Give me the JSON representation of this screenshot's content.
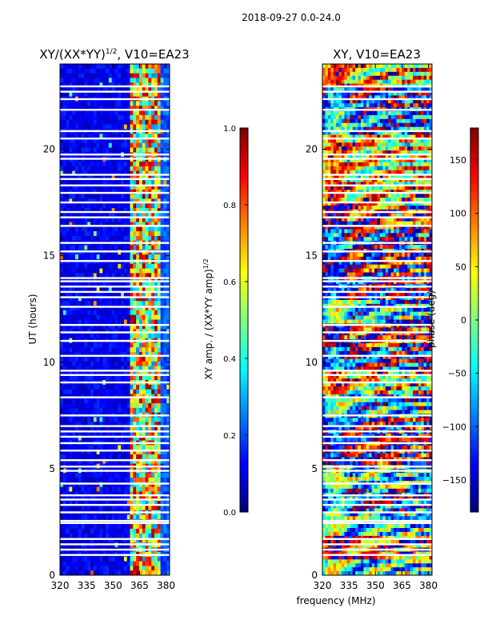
{
  "suptitle": "2018-09-27 0.0-24.0",
  "colors": {
    "jet": [
      "#00007f",
      "#0000ff",
      "#007fff",
      "#00ffff",
      "#7fff7f",
      "#ffff00",
      "#ff7f00",
      "#ff0000",
      "#7f0000"
    ],
    "flag_gap": "#ffffff"
  },
  "chart_data": [
    {
      "type": "heatmap",
      "panel": "amplitude",
      "title": "XY/(XX*YY)",
      "title_exponent": "1/2",
      "title_suffix": ", V10=EA23",
      "xlabel": "",
      "ylabel": "UT (hours)",
      "xlim": [
        320,
        382
      ],
      "ylim": [
        0,
        24
      ],
      "xticks": [
        "320",
        "335",
        "350",
        "365",
        "380"
      ],
      "xtick_values": [
        320,
        335,
        350,
        365,
        380
      ],
      "yticks": [
        "0",
        "5",
        "10",
        "15",
        "20"
      ],
      "ytick_values": [
        0,
        5,
        10,
        15,
        20
      ],
      "colorbar": {
        "label": "XY amp. / (XX*YY amp)",
        "label_exponent": "1/2",
        "vmin": 0.0,
        "vmax": 1.0,
        "ticks": [
          "0.0",
          "0.2",
          "0.4",
          "0.6",
          "0.8",
          "1.0"
        ],
        "tick_values": [
          0.0,
          0.2,
          0.4,
          0.6,
          0.8,
          1.0
        ]
      },
      "description_bands": [
        {
          "freq_range": [
            320,
            360
          ],
          "typical_value": 0.05
        },
        {
          "freq_range": [
            360,
            377
          ],
          "typical_value": 0.55
        },
        {
          "freq_range": [
            377,
            382
          ],
          "typical_value": 0.15
        }
      ]
    },
    {
      "type": "heatmap",
      "panel": "phase",
      "title": "XY, V10=EA23",
      "xlabel": "frequency (MHz)",
      "ylabel": "",
      "xlim": [
        320,
        382
      ],
      "ylim": [
        0,
        24
      ],
      "xticks": [
        "320",
        "335",
        "350",
        "365",
        "380"
      ],
      "xtick_values": [
        320,
        335,
        350,
        365,
        380
      ],
      "yticks": [
        "0",
        "5",
        "10",
        "15",
        "20"
      ],
      "ytick_values": [
        0,
        5,
        10,
        15,
        20
      ],
      "colorbar": {
        "label": "phase (deg)",
        "vmin": -180,
        "vmax": 180,
        "ticks": [
          "−150",
          "−100",
          "−50",
          "0",
          "50",
          "100",
          "150"
        ],
        "tick_values": [
          -150,
          -100,
          -50,
          0,
          50,
          100,
          150
        ]
      }
    }
  ],
  "flagged_hours": [
    0.95,
    1.2,
    1.45,
    1.7,
    2.45,
    2.55,
    2.95,
    3.3,
    3.55,
    3.75,
    4.3,
    4.9,
    5.1,
    5.4,
    5.85,
    6.2,
    6.5,
    6.75,
    7.0,
    7.5,
    8.35,
    9.05,
    9.4,
    9.6,
    10.3,
    11.0,
    11.4,
    11.75,
    12.6,
    13.05,
    13.3,
    13.55,
    13.8,
    13.95,
    14.75,
    15.2,
    15.6,
    16.4,
    16.8,
    17.05,
    17.5,
    17.95,
    18.3,
    18.6,
    18.8,
    19.55,
    19.75,
    20.5,
    20.85,
    21.85,
    22.35,
    22.7,
    22.95
  ]
}
